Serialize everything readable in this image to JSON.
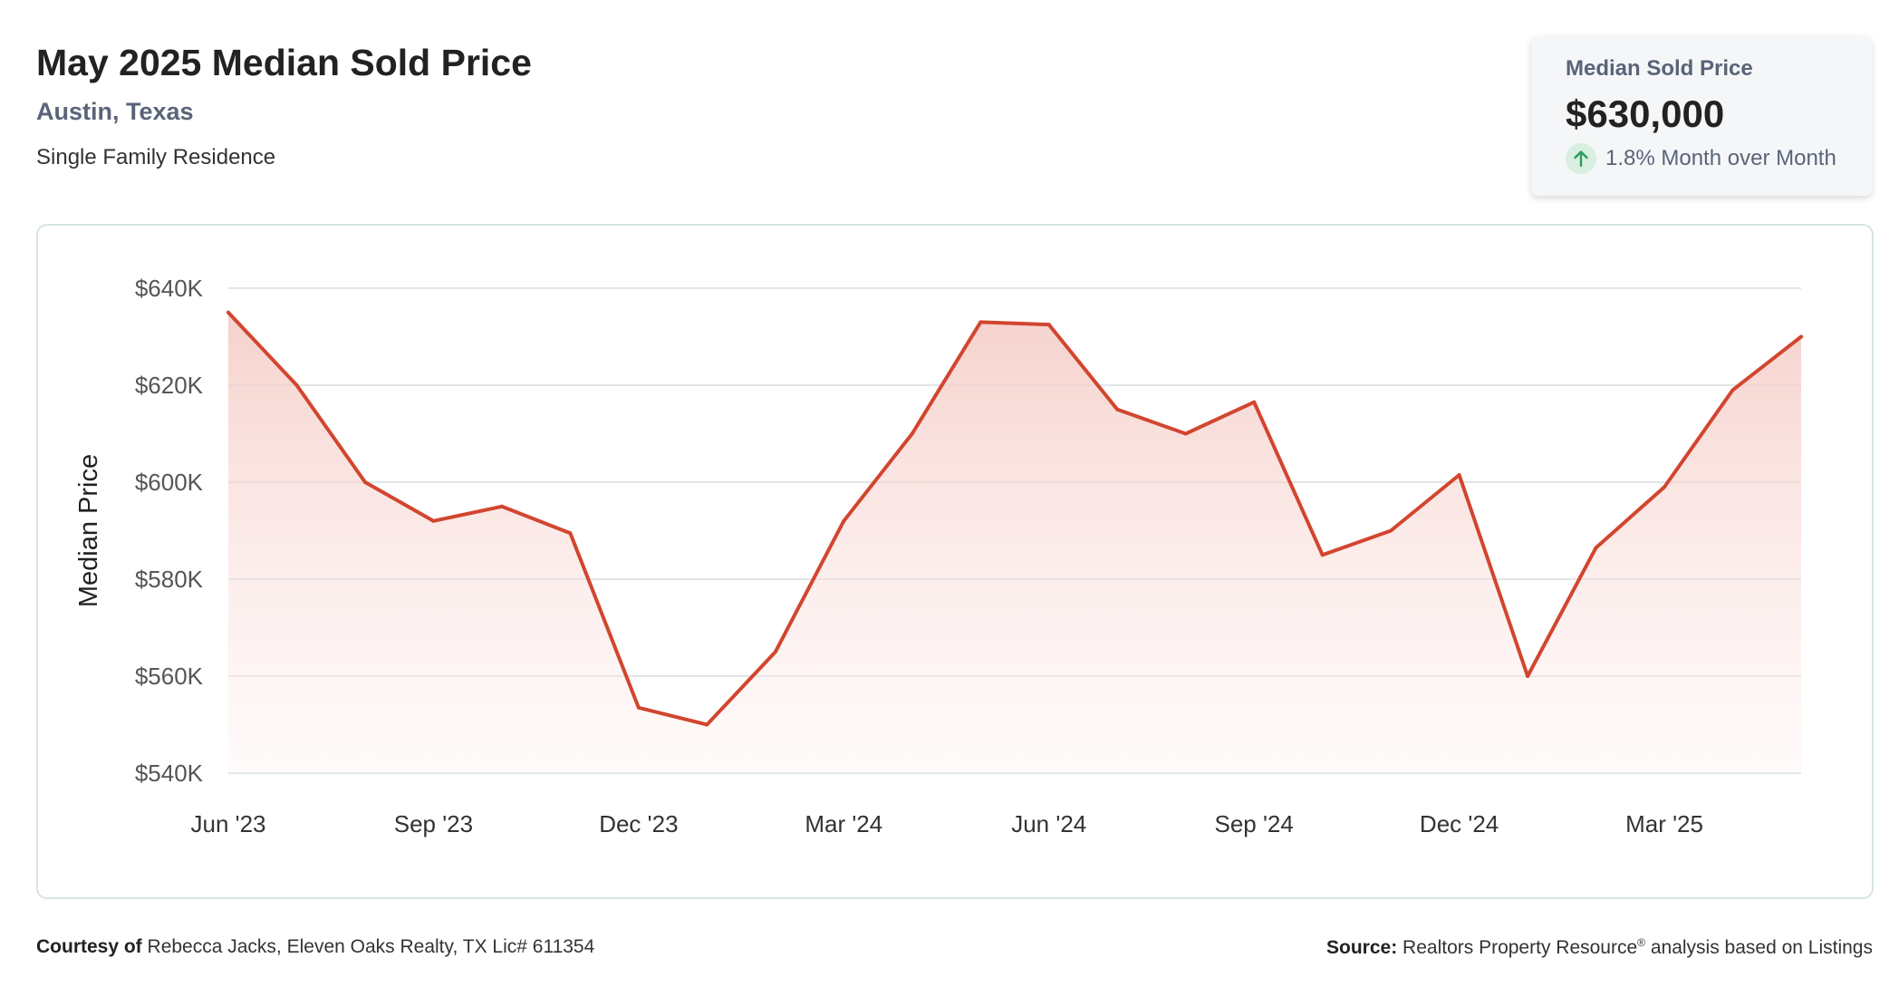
{
  "header": {
    "title": "May 2025 Median Sold Price",
    "location": "Austin, Texas",
    "property_type": "Single Family Residence"
  },
  "stat_card": {
    "label": "Median Sold Price",
    "value": "$630,000",
    "change": "1.8% Month over Month",
    "icon": "arrow-up-icon"
  },
  "colors": {
    "line": "#d2452f",
    "fill_top": "#f4c9c3",
    "grid": "#e2e6e9",
    "accent_up": "#2e9e5b"
  },
  "footer": {
    "courtesy_label": "Courtesy of",
    "courtesy_text": "Rebecca Jacks, Eleven Oaks Realty, TX Lic# 611354",
    "source_label": "Source:",
    "source_text_1": "Realtors Property Resource",
    "source_sup": "®",
    "source_text_2": " analysis based on Listings"
  },
  "chart_data": {
    "type": "area",
    "title": "",
    "xlabel": "",
    "ylabel": "Median Price",
    "ylim": [
      540000,
      640000
    ],
    "y_ticks": [
      {
        "value": 640000,
        "label": "$640K"
      },
      {
        "value": 620000,
        "label": "$620K"
      },
      {
        "value": 600000,
        "label": "$600K"
      },
      {
        "value": 580000,
        "label": "$580K"
      },
      {
        "value": 560000,
        "label": "$560K"
      },
      {
        "value": 540000,
        "label": "$540K"
      }
    ],
    "x_ticks": [
      {
        "index": 0,
        "label": "Jun '23"
      },
      {
        "index": 3,
        "label": "Sep '23"
      },
      {
        "index": 6,
        "label": "Dec '23"
      },
      {
        "index": 9,
        "label": "Mar '24"
      },
      {
        "index": 12,
        "label": "Jun '24"
      },
      {
        "index": 15,
        "label": "Sep '24"
      },
      {
        "index": 18,
        "label": "Dec '24"
      },
      {
        "index": 21,
        "label": "Mar '25"
      }
    ],
    "grid": true,
    "series": [
      {
        "x": [
          "2023-06",
          "2023-07",
          "2023-08",
          "2023-09",
          "2023-10",
          "2023-11",
          "2023-12",
          "2024-01",
          "2024-02",
          "2024-03",
          "2024-04",
          "2024-05",
          "2024-06",
          "2024-07",
          "2024-08",
          "2024-09",
          "2024-10",
          "2024-11",
          "2024-12",
          "2025-01",
          "2025-02",
          "2025-03",
          "2025-04",
          "2025-05"
        ],
        "values": [
          635000,
          620000,
          600000,
          592000,
          595000,
          589500,
          553500,
          550000,
          565000,
          592000,
          610000,
          633000,
          632500,
          615000,
          610000,
          616500,
          585000,
          590000,
          601500,
          560000,
          586500,
          599000,
          619000,
          630000
        ]
      }
    ]
  }
}
